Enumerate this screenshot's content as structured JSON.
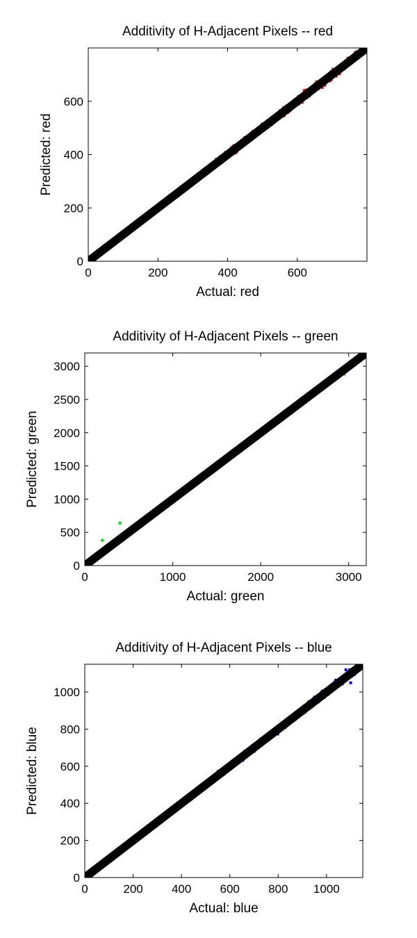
{
  "chart_data": [
    {
      "type": "scatter",
      "title": "Additivity of H-Adjacent Pixels -- red",
      "xlabel": "Actual: red",
      "ylabel": "Predicted: red",
      "xlim": [
        0,
        800
      ],
      "ylim": [
        0,
        800
      ],
      "xticks": [
        "0",
        "200",
        "400",
        "600"
      ],
      "yticks": [
        "0",
        "200",
        "400",
        "600"
      ],
      "xtick_values": [
        0,
        200,
        400,
        600
      ],
      "ytick_values": [
        0,
        200,
        400,
        600
      ],
      "grid": false,
      "series": [
        {
          "color": "#ff0000",
          "spread_fraction": 0.035,
          "x_range": [
            0,
            790
          ],
          "points": [
            [
              310,
              300
            ],
            [
              620,
              640
            ]
          ]
        },
        {
          "color": "#000000",
          "fit": "y = x",
          "x_range": [
            0,
            800
          ]
        }
      ]
    },
    {
      "type": "scatter",
      "title": "Additivity of H-Adjacent Pixels -- green",
      "xlabel": "Actual: green",
      "ylabel": "Predicted: green",
      "xlim": [
        0,
        3200
      ],
      "ylim": [
        0,
        3200
      ],
      "xticks": [
        "0",
        "1000",
        "2000",
        "3000"
      ],
      "yticks": [
        "0",
        "500",
        "1000",
        "1500",
        "2000",
        "2500",
        "3000"
      ],
      "xtick_values": [
        0,
        1000,
        2000,
        3000
      ],
      "ytick_values": [
        0,
        500,
        1000,
        1500,
        2000,
        2500,
        3000
      ],
      "grid": false,
      "series": [
        {
          "color": "#00e000",
          "spread_fraction": 0.012,
          "x_range": [
            0,
            3150
          ],
          "points": [
            [
              200,
              380
            ],
            [
              400,
              640
            ],
            [
              2950,
              2880
            ]
          ]
        },
        {
          "color": "#000000",
          "fit": "y = x",
          "x_range": [
            0,
            3200
          ]
        }
      ]
    },
    {
      "type": "scatter",
      "title": "Additivity of H-Adjacent Pixels -- blue",
      "xlabel": "Actual: blue",
      "ylabel": "Predicted: blue",
      "xlim": [
        0,
        1150
      ],
      "ylim": [
        0,
        1150
      ],
      "xticks": [
        "0",
        "200",
        "400",
        "600",
        "800",
        "1000"
      ],
      "yticks": [
        "0",
        "200",
        "400",
        "600",
        "800",
        "1000"
      ],
      "xtick_values": [
        0,
        200,
        400,
        600,
        800,
        1000
      ],
      "ytick_values": [
        0,
        200,
        400,
        600,
        800,
        1000
      ],
      "grid": false,
      "series": [
        {
          "color": "#0000ff",
          "spread_fraction": 0.03,
          "x_range": [
            0,
            1140
          ],
          "points": [
            [
              1080,
              1120
            ],
            [
              1100,
              1050
            ]
          ]
        },
        {
          "color": "#000000",
          "fit": "y = x",
          "x_range": [
            0,
            1150
          ]
        }
      ]
    }
  ]
}
